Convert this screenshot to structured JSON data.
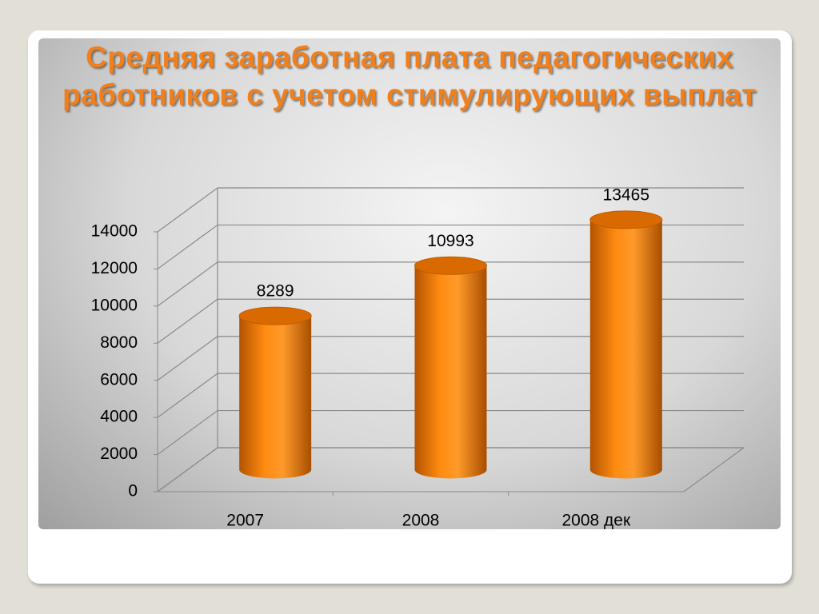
{
  "chart_data": {
    "type": "bar",
    "title": "Средняя заработная плата педагогических работников с учетом стимулирующих выплат",
    "categories": [
      "2007",
      "2008",
      "2008 дек"
    ],
    "values": [
      8289,
      10993,
      13465
    ],
    "color": "#f58208",
    "ylim": [
      0,
      14000
    ],
    "yticks": [
      0,
      2000,
      4000,
      6000,
      8000,
      10000,
      12000,
      14000
    ],
    "grid": true
  }
}
